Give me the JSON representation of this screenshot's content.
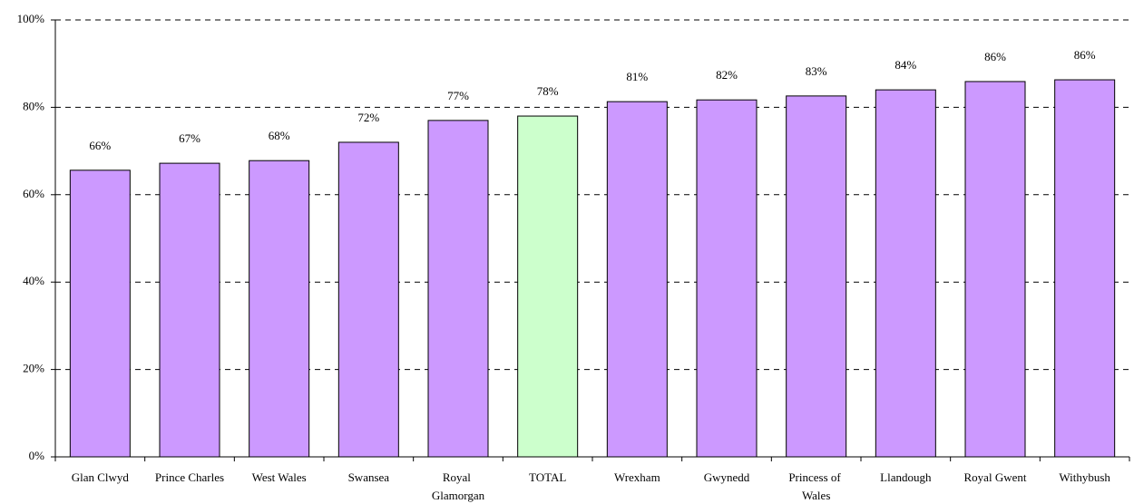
{
  "chart_data": {
    "type": "bar",
    "categories": [
      "Glan Clwyd",
      "Prince Charles",
      "West Wales",
      "Swansea",
      "Royal Glamorgan",
      "TOTAL",
      "Wrexham",
      "Gwynedd",
      "Princess of Wales",
      "Llandough",
      "Royal Gwent",
      "Withybush"
    ],
    "values": [
      65.6,
      67.2,
      67.8,
      72.0,
      77.0,
      78.0,
      81.3,
      81.7,
      82.6,
      84.0,
      85.9,
      86.3
    ],
    "value_labels": [
      "66%",
      "67%",
      "68%",
      "72%",
      "77%",
      "78%",
      "81%",
      "82%",
      "83%",
      "84%",
      "86%",
      "86%"
    ],
    "colors": [
      "#cc99ff",
      "#cc99ff",
      "#cc99ff",
      "#cc99ff",
      "#cc99ff",
      "#ccffcc",
      "#cc99ff",
      "#cc99ff",
      "#cc99ff",
      "#cc99ff",
      "#cc99ff",
      "#cc99ff"
    ],
    "ylim": [
      0,
      100
    ],
    "yticks": [
      {
        "value": 0,
        "label": "0%"
      },
      {
        "value": 20,
        "label": "20%"
      },
      {
        "value": 40,
        "label": "40%"
      },
      {
        "value": 60,
        "label": "60%"
      },
      {
        "value": 80,
        "label": "80%"
      },
      {
        "value": 100,
        "label": "100%"
      }
    ],
    "grid": true
  }
}
